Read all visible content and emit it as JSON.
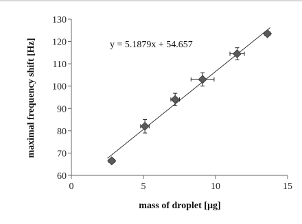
{
  "chart_data": {
    "type": "scatter",
    "xlabel": "mass of droplet [µg]",
    "ylabel": "maximal  frequency shift [Hz]",
    "xlim": [
      0,
      15
    ],
    "ylim": [
      60,
      130
    ],
    "x_ticks": [
      "0",
      "5",
      "10",
      "15"
    ],
    "y_ticks": [
      "60",
      "70",
      "80",
      "90",
      "100",
      "110",
      "120",
      "130"
    ],
    "grid": false,
    "legend": "none",
    "marker": "diamond",
    "marker_color": "#5a5a5a",
    "series": [
      {
        "x": [
          2.8,
          5.1,
          7.2,
          9.1,
          11.5,
          13.6
        ],
        "y": [
          66.5,
          82,
          94,
          103,
          114.5,
          123.5
        ],
        "x_err": [
          0.2,
          0.3,
          0.3,
          0.8,
          0.5,
          0.2
        ],
        "y_err": [
          1.0,
          3.0,
          2.8,
          3.0,
          2.7,
          1.0
        ]
      }
    ],
    "trendline": {
      "slope": 5.1879,
      "intercept": 54.657,
      "x_range": [
        2.5,
        13.8
      ],
      "equation": "y = 5.1879x + 54.657"
    }
  }
}
